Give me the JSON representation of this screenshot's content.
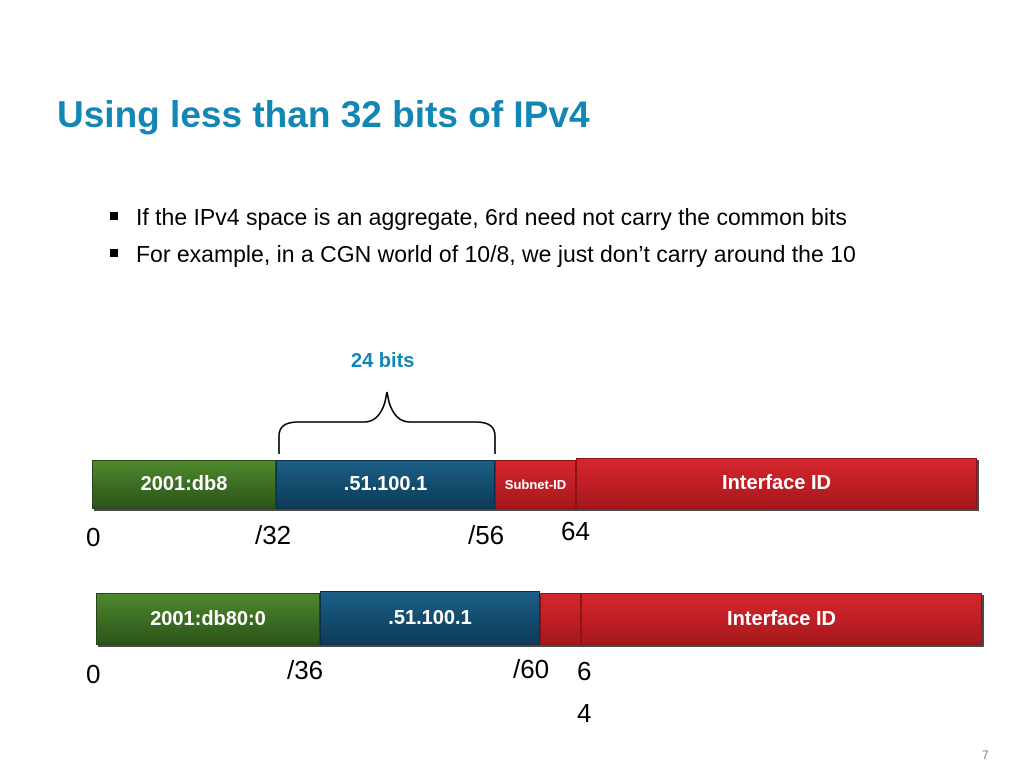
{
  "slide": {
    "title": "Using less than 32 bits of IPv4",
    "bullets": [
      "If the IPv4 space is an aggregate, 6rd need not carry the common bits",
      "For example, in a CGN world of 10/8, we just don’t carry around the 10"
    ],
    "brace_label": "24 bits",
    "page_number": "7"
  },
  "row1": {
    "prefix": "2001:db8",
    "ipv4": ".51.100.1",
    "subnet": "Subnet-ID",
    "iface": "Interface ID",
    "marks": [
      "0",
      "/32",
      "/56",
      "64"
    ]
  },
  "row2": {
    "prefix": "2001:db80:0",
    "ipv4": ".51.100.1",
    "iface": "Interface ID",
    "marks": [
      "0",
      "/36",
      "/60",
      "6",
      "4"
    ]
  },
  "colors": {
    "title": "#1387b4",
    "green": "#3a6b22",
    "blue": "#124b6c",
    "red": "#bd1e24"
  }
}
